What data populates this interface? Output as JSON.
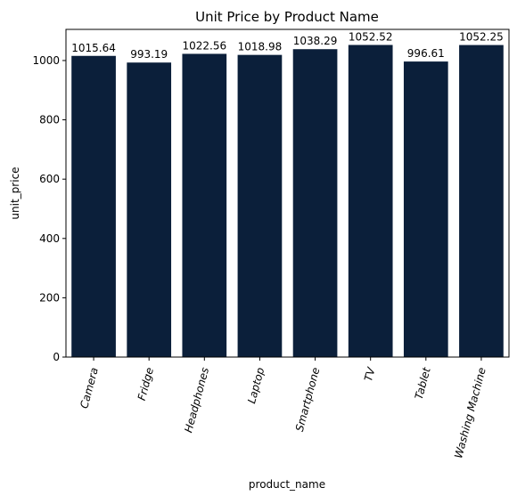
{
  "chart_data": {
    "type": "bar",
    "title": "Unit Price by Product Name",
    "xlabel": "product_name",
    "ylabel": "unit_price",
    "categories": [
      "Camera",
      "Fridge",
      "Headphones",
      "Laptop",
      "Smartphone",
      "TV",
      "Tablet",
      "Washing Machine"
    ],
    "values": [
      1015.64,
      993.19,
      1022.56,
      1018.98,
      1038.29,
      1052.52,
      996.61,
      1052.25
    ],
    "data_labels": [
      "1015.64",
      "993.19",
      "1022.56",
      "1018.98",
      "1038.29",
      "1052.52",
      "996.61",
      "1052.25"
    ],
    "ylim": [
      0,
      1105
    ],
    "yticks": [
      0,
      200,
      400,
      600,
      800,
      1000
    ],
    "ytick_labels": [
      "0",
      "200",
      "400",
      "600",
      "800",
      "1000"
    ],
    "bar_color": "#0b1f3a",
    "grid": false,
    "legend": "none"
  }
}
